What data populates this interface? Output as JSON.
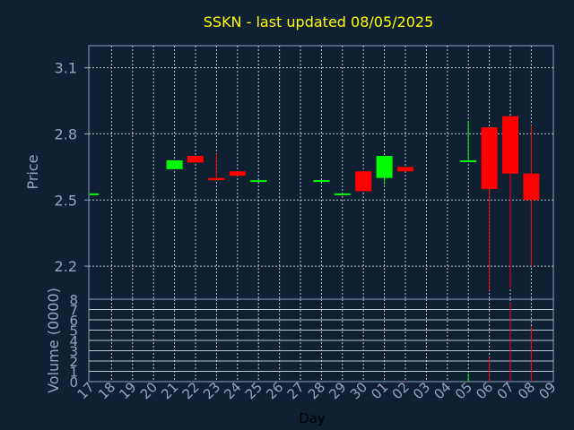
{
  "chart_data": {
    "type": "candlestick",
    "title": "SSKN - last updated 08/05/2025",
    "xlabel": "Day",
    "price_panel": {
      "ylabel": "Price",
      "ylim": [
        2.05,
        3.2
      ],
      "yticks": [
        "2.2",
        "2.5",
        "2.8",
        "3.1"
      ],
      "grid": true
    },
    "volume_panel": {
      "ylabel": "Volume (0000)",
      "ylim": [
        0,
        8
      ],
      "yticks": [
        "0",
        "1",
        "2",
        "3",
        "4",
        "5",
        "6",
        "7",
        "8"
      ],
      "grid": true
    },
    "x_ticks": [
      "17",
      "18",
      "19",
      "20",
      "21",
      "22",
      "23",
      "24",
      "25",
      "26",
      "27",
      "28",
      "29",
      "30",
      "01",
      "02",
      "03",
      "04",
      "05",
      "06",
      "07",
      "08",
      "09"
    ],
    "candles": [
      {
        "day": "17",
        "open": 2.53,
        "high": 2.53,
        "low": 2.53,
        "close": 2.53,
        "volume": 0
      },
      {
        "day": "21",
        "open": 2.64,
        "high": 2.68,
        "low": 2.64,
        "close": 2.68,
        "volume": 0
      },
      {
        "day": "22",
        "open": 2.7,
        "high": 2.7,
        "low": 2.67,
        "close": 2.67,
        "volume": 0
      },
      {
        "day": "23",
        "open": 2.6,
        "high": 2.71,
        "low": 2.59,
        "close": 2.59,
        "volume": 0
      },
      {
        "day": "24",
        "open": 2.63,
        "high": 2.63,
        "low": 2.61,
        "close": 2.61,
        "volume": 0
      },
      {
        "day": "25",
        "open": 2.59,
        "high": 2.59,
        "low": 2.59,
        "close": 2.59,
        "volume": 0
      },
      {
        "day": "28",
        "open": 2.59,
        "high": 2.59,
        "low": 2.59,
        "close": 2.59,
        "volume": 0
      },
      {
        "day": "29",
        "open": 2.53,
        "high": 2.53,
        "low": 2.53,
        "close": 2.53,
        "volume": 0
      },
      {
        "day": "30",
        "open": 2.63,
        "high": 2.63,
        "low": 2.54,
        "close": 2.54,
        "volume": 0
      },
      {
        "day": "01",
        "open": 2.6,
        "high": 2.7,
        "low": 2.57,
        "close": 2.7,
        "volume": 0.1
      },
      {
        "day": "02",
        "open": 2.65,
        "high": 2.65,
        "low": 2.63,
        "close": 2.63,
        "volume": 0.1
      },
      {
        "day": "05",
        "open": 2.68,
        "high": 2.86,
        "low": 2.67,
        "close": 2.68,
        "volume": 0.8
      },
      {
        "day": "06",
        "open": 2.83,
        "high": 2.83,
        "low": 2.09,
        "close": 2.55,
        "volume": 2.4
      },
      {
        "day": "07",
        "open": 2.88,
        "high": 2.88,
        "low": 2.1,
        "close": 2.62,
        "volume": 7.6
      },
      {
        "day": "08",
        "open": 2.62,
        "high": 2.84,
        "low": 2.2,
        "close": 2.5,
        "volume": 5.4
      }
    ],
    "colors": {
      "up": "#00ff00",
      "down": "#ff0000",
      "background": "#0f2033",
      "plot_border": "#8aa3bd",
      "grid": "#b9c6d4",
      "title": "#ffff00",
      "label": "#8fa8c3",
      "xlabel": "#000000"
    }
  }
}
